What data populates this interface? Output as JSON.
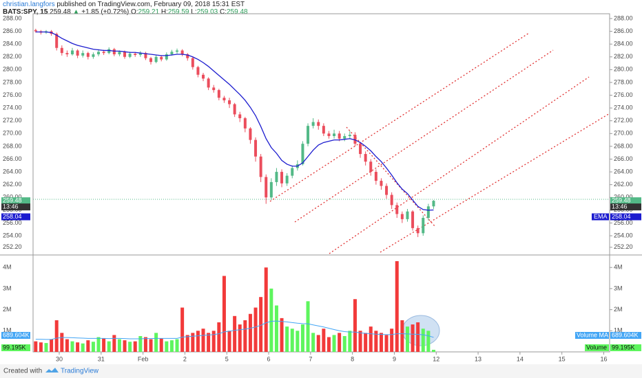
{
  "header": {
    "author": "christian.langfors",
    "published": "published on TradingView.com, February 09, 2018 15:31 EST",
    "symbol": "BATS:SPY, 15",
    "last": "259.48",
    "arrow": "▲",
    "change": "+1.85 (+0.72%)",
    "o_label": "O:",
    "o": "259.21",
    "h_label": "H:",
    "h": "259.59",
    "l_label": "L:",
    "l": "259.03",
    "c_label": "C:",
    "c": "259.48"
  },
  "footer": {
    "text": "Created with",
    "brand": "TradingView"
  },
  "chart_data": [
    {
      "type": "candlestick",
      "countdown": "13:46",
      "up_color": "#53b987",
      "down_color": "#eb4d5c",
      "xlim": [
        0.375,
        14.14
      ],
      "ylim": [
        251.1,
        288.75
      ],
      "yticks": [
        {
          "value": 288,
          "label": "288.00"
        },
        {
          "value": 286,
          "label": "286.00"
        },
        {
          "value": 284,
          "label": "284.00"
        },
        {
          "value": 282,
          "label": "282.00"
        },
        {
          "value": 280,
          "label": "280.00"
        },
        {
          "value": 278,
          "label": "278.00"
        },
        {
          "value": 276,
          "label": "276.00"
        },
        {
          "value": 274,
          "label": "274.00"
        },
        {
          "value": 272,
          "label": "272.00"
        },
        {
          "value": 270,
          "label": "270.00"
        },
        {
          "value": 268,
          "label": "268.00"
        },
        {
          "value": 266,
          "label": "266.00"
        },
        {
          "value": 264,
          "label": "264.00"
        },
        {
          "value": 262,
          "label": "262.00"
        },
        {
          "value": 260,
          "label": "260.00"
        },
        {
          "value": 258,
          "label": "258.00"
        },
        {
          "value": 256,
          "label": "256.00"
        },
        {
          "value": 254,
          "label": "254.00"
        },
        {
          "value": 252.2,
          "label": "252.20"
        }
      ],
      "x": [
        0.4375,
        0.5625,
        0.6875,
        0.8125,
        0.9375,
        1.0625,
        1.1875,
        1.3125,
        1.4375,
        1.5625,
        1.6875,
        1.8125,
        1.9375,
        2.0625,
        2.1875,
        2.3125,
        2.4375,
        2.5625,
        2.6875,
        2.8125,
        2.9375,
        3.0625,
        3.1875,
        3.3125,
        3.4375,
        3.5625,
        3.6875,
        3.8125,
        3.9375,
        4.0625,
        4.1875,
        4.3125,
        4.4375,
        4.5625,
        4.6875,
        4.8125,
        4.9375,
        5.0625,
        5.1875,
        5.3125,
        5.4375,
        5.5625,
        5.6875,
        5.8125,
        5.9375,
        6.0625,
        6.1875,
        6.3125,
        6.4375,
        6.5625,
        6.6875,
        6.8125,
        6.9375,
        7.0625,
        7.1875,
        7.3125,
        7.4375,
        7.5625,
        7.6875,
        7.8125,
        7.9375,
        8.0625,
        8.1875,
        8.3125,
        8.4375,
        8.5625,
        8.6875,
        8.8125,
        8.9375,
        9.0625,
        9.1875,
        9.3125,
        9.4375,
        9.5625,
        9.6875,
        9.8125,
        9.9375
      ],
      "open": [
        286.2,
        286.0,
        285.8,
        286.0,
        285.6,
        283.4,
        282.6,
        282.4,
        283.0,
        282.2,
        282.6,
        282.0,
        282.4,
        282.8,
        282.6,
        283.2,
        282.4,
        282.8,
        282.0,
        282.5,
        282.3,
        282.6,
        281.8,
        281.2,
        282.0,
        281.6,
        282.4,
        282.8,
        283.0,
        282.4,
        281.8,
        280.4,
        279.2,
        278.6,
        277.2,
        276.8,
        275.6,
        275.2,
        274.6,
        273.0,
        272.4,
        270.8,
        269.0,
        266.4,
        263.2,
        260.0,
        262.4,
        264.0,
        262.2,
        263.4,
        264.6,
        265.2,
        268.4,
        271.2,
        271.8,
        271.2,
        270.0,
        269.6,
        270.0,
        269.2,
        269.6,
        269.8,
        268.4,
        266.8,
        265.6,
        264.0,
        262.6,
        261.8,
        260.4,
        258.8,
        257.4,
        256.6,
        257.8,
        255.2,
        254.4,
        256.8,
        258.6
      ],
      "high": [
        286.4,
        286.2,
        286.2,
        286.2,
        285.8,
        283.8,
        283.0,
        283.4,
        283.2,
        283.0,
        282.8,
        282.7,
        283.2,
        283.1,
        283.5,
        283.4,
        283.0,
        283.0,
        282.8,
        282.7,
        282.9,
        282.8,
        282.0,
        282.3,
        282.2,
        282.7,
        283.1,
        283.3,
        283.2,
        282.6,
        282.0,
        280.6,
        279.5,
        278.8,
        277.6,
        277.0,
        275.9,
        275.6,
        274.8,
        273.4,
        272.6,
        271.0,
        269.4,
        266.8,
        263.6,
        263.0,
        264.6,
        264.4,
        263.8,
        265.0,
        265.8,
        268.8,
        271.6,
        272.4,
        272.2,
        271.6,
        270.4,
        270.6,
        270.4,
        270.0,
        270.4,
        270.2,
        268.6,
        267.2,
        266.0,
        264.4,
        263.0,
        262.2,
        260.8,
        259.2,
        257.8,
        258.2,
        258.0,
        255.6,
        257.2,
        259.0,
        259.59
      ],
      "low": [
        285.8,
        285.5,
        285.6,
        285.3,
        283.0,
        282.2,
        282.0,
        282.2,
        281.8,
        281.9,
        281.6,
        281.7,
        282.1,
        282.3,
        282.4,
        282.1,
        282.1,
        281.7,
        281.8,
        282.0,
        282.0,
        281.5,
        280.8,
        281.0,
        281.3,
        281.4,
        282.2,
        282.5,
        282.1,
        281.4,
        280.0,
        278.8,
        278.2,
        276.8,
        276.4,
        275.2,
        274.8,
        274.0,
        272.6,
        271.8,
        270.2,
        268.4,
        265.6,
        262.4,
        259.0,
        259.6,
        261.8,
        261.6,
        261.8,
        263.0,
        264.2,
        265.0,
        268.0,
        270.8,
        270.6,
        269.6,
        269.2,
        269.2,
        268.8,
        268.8,
        269.2,
        268.0,
        266.2,
        265.0,
        263.4,
        262.0,
        261.2,
        259.8,
        258.2,
        256.8,
        256.0,
        256.2,
        254.8,
        253.8,
        254.0,
        256.4,
        258.2
      ],
      "close": [
        286.0,
        285.8,
        286.0,
        285.6,
        283.4,
        282.6,
        282.4,
        283.0,
        282.2,
        282.6,
        282.0,
        282.4,
        282.8,
        282.6,
        283.2,
        282.4,
        282.8,
        282.0,
        282.5,
        282.3,
        282.6,
        281.8,
        281.2,
        282.0,
        281.6,
        282.4,
        282.8,
        283.0,
        282.4,
        281.8,
        280.4,
        279.2,
        278.6,
        277.2,
        276.8,
        275.6,
        275.2,
        274.6,
        273.0,
        272.4,
        270.8,
        269.0,
        266.4,
        263.2,
        260.0,
        262.4,
        264.0,
        262.2,
        263.4,
        264.6,
        265.2,
        268.4,
        271.2,
        271.8,
        271.2,
        270.0,
        269.6,
        270.0,
        269.2,
        269.6,
        269.8,
        268.4,
        266.8,
        265.6,
        264.0,
        262.6,
        261.8,
        260.4,
        258.8,
        257.4,
        256.6,
        257.8,
        255.2,
        254.4,
        256.8,
        258.6,
        259.48
      ],
      "series": [
        {
          "name": "EMA",
          "color": "#1c1ccf",
          "values": [
            285.9,
            285.9,
            285.9,
            285.8,
            285.4,
            284.9,
            284.5,
            284.1,
            283.8,
            283.6,
            283.4,
            283.2,
            283.1,
            283.0,
            283.0,
            282.9,
            282.9,
            282.8,
            282.7,
            282.7,
            282.6,
            282.5,
            282.4,
            282.3,
            282.2,
            282.2,
            282.3,
            282.4,
            282.4,
            282.3,
            282.0,
            281.6,
            281.1,
            280.5,
            279.8,
            279.1,
            278.4,
            277.7,
            276.9,
            276.1,
            275.2,
            274.1,
            272.8,
            271.1,
            269.2,
            267.8,
            266.9,
            265.8,
            265.2,
            264.9,
            264.9,
            265.4,
            266.4,
            267.4,
            268.2,
            268.6,
            268.8,
            269.0,
            269.0,
            269.1,
            269.2,
            269.0,
            268.6,
            268.0,
            267.3,
            266.4,
            265.6,
            264.6,
            263.5,
            262.3,
            261.3,
            260.6,
            259.6,
            258.6,
            258.1,
            258.0,
            258.04
          ]
        }
      ]
    },
    {
      "type": "volume",
      "name": "Volume",
      "last_label": "99.195K",
      "up_color": "#5ef55e",
      "down_color": "#f23a3a",
      "xlim": [
        0.375,
        14.14
      ],
      "ylim": [
        0,
        4560000
      ],
      "yticks": [
        {
          "value": 1000000,
          "label": "1M"
        },
        {
          "value": 2000000,
          "label": "2M"
        },
        {
          "value": 3000000,
          "label": "3M"
        },
        {
          "value": 4000000,
          "label": "4M"
        }
      ],
      "xticks": [
        {
          "value": 1,
          "label": "30"
        },
        {
          "value": 2,
          "label": "31"
        },
        {
          "value": 3,
          "label": "Feb"
        },
        {
          "value": 4,
          "label": "2"
        },
        {
          "value": 5,
          "label": "5"
        },
        {
          "value": 6,
          "label": "6"
        },
        {
          "value": 7,
          "label": "7"
        },
        {
          "value": 8,
          "label": "8"
        },
        {
          "value": 9,
          "label": "9"
        },
        {
          "value": 10,
          "label": "12"
        },
        {
          "value": 11,
          "label": "13"
        },
        {
          "value": 12,
          "label": "14"
        },
        {
          "value": 13,
          "label": "15"
        },
        {
          "value": 14,
          "label": "16"
        }
      ],
      "values": [
        500000,
        450000,
        420000,
        600000,
        1500000,
        900000,
        600000,
        500000,
        450000,
        400000,
        550000,
        480000,
        700000,
        650000,
        500000,
        800000,
        600000,
        550000,
        480000,
        500000,
        750000,
        700000,
        600000,
        900000,
        650000,
        500000,
        550000,
        600000,
        2100000,
        800000,
        900000,
        1000000,
        1100000,
        900000,
        1000000,
        1400000,
        3600000,
        1000000,
        1700000,
        1300000,
        1500000,
        1800000,
        2100000,
        2600000,
        4000000,
        3000000,
        2200000,
        1600000,
        1200000,
        1100000,
        1000000,
        1300000,
        2400000,
        900000,
        800000,
        1100000,
        700000,
        800000,
        900000,
        750000,
        1000000,
        2500000,
        1000000,
        900000,
        1200000,
        1000000,
        900000,
        800000,
        1100000,
        4300000,
        1500000,
        1200000,
        1300000,
        1400000,
        1100000,
        1000000,
        99195
      ],
      "series": [
        {
          "name": "Volume MA",
          "color": "#42a5f5",
          "last_label": "689.604K",
          "values": [
            600000,
            600000,
            590000,
            590000,
            650000,
            680000,
            680000,
            670000,
            660000,
            650000,
            640000,
            640000,
            640000,
            640000,
            630000,
            640000,
            640000,
            630000,
            620000,
            620000,
            620000,
            630000,
            630000,
            640000,
            640000,
            640000,
            640000,
            640000,
            700000,
            720000,
            740000,
            760000,
            780000,
            800000,
            820000,
            860000,
            950000,
            980000,
            1020000,
            1050000,
            1080000,
            1120000,
            1180000,
            1260000,
            1380000,
            1450000,
            1460000,
            1440000,
            1420000,
            1390000,
            1360000,
            1340000,
            1330000,
            1280000,
            1230000,
            1180000,
            1120000,
            1060000,
            1000000,
            960000,
            940000,
            940000,
            900000,
            880000,
            860000,
            840000,
            830000,
            820000,
            820000,
            860000,
            860000,
            850000,
            840000,
            830000,
            810000,
            760000,
            689604
          ]
        }
      ]
    }
  ]
}
